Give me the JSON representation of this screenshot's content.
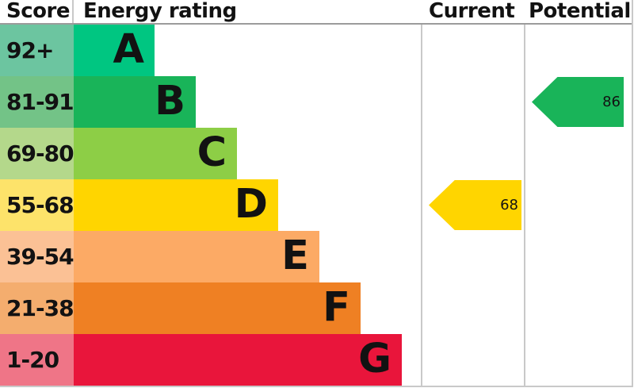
{
  "header": {
    "score": "Score",
    "rating": "Energy rating",
    "current": "Current",
    "potential": "Potential"
  },
  "bands": [
    {
      "letter": "A",
      "score": "92+",
      "color": "#00c681",
      "tint": "#6cc5a0"
    },
    {
      "letter": "B",
      "score": "81-91",
      "color": "#19b459",
      "tint": "#73c387"
    },
    {
      "letter": "C",
      "score": "69-80",
      "color": "#8dce46",
      "tint": "#b4d88b"
    },
    {
      "letter": "D",
      "score": "55-68",
      "color": "#ffd500",
      "tint": "#fde36a"
    },
    {
      "letter": "E",
      "score": "39-54",
      "color": "#fcaa65",
      "tint": "#fbc195"
    },
    {
      "letter": "F",
      "score": "21-38",
      "color": "#ef8023",
      "tint": "#f4ad6e"
    },
    {
      "letter": "G",
      "score": "1-20",
      "color": "#e9153b",
      "tint": "#ef7587"
    }
  ],
  "current": {
    "value": "68",
    "band": "D",
    "row_index": 3,
    "color": "#ffd500"
  },
  "potential": {
    "value": "86",
    "band": "B",
    "row_index": 1,
    "color": "#19b459"
  },
  "chart_data": {
    "type": "bar",
    "title": "Energy rating",
    "orientation": "horizontal",
    "categories": [
      "A",
      "B",
      "C",
      "D",
      "E",
      "F",
      "G"
    ],
    "score_ranges": [
      "92+",
      "81-91",
      "69-80",
      "55-68",
      "39-54",
      "21-38",
      "1-20"
    ],
    "band_colors": [
      "#00c681",
      "#19b459",
      "#8dce46",
      "#ffd500",
      "#fcaa65",
      "#ef8023",
      "#e9153b"
    ],
    "columns": [
      "Score",
      "Energy rating",
      "Current",
      "Potential"
    ],
    "markers": [
      {
        "label": "Current",
        "value": 68,
        "band": "D",
        "color": "#ffd500"
      },
      {
        "label": "Potential",
        "value": 86,
        "band": "B",
        "color": "#19b459"
      }
    ]
  }
}
